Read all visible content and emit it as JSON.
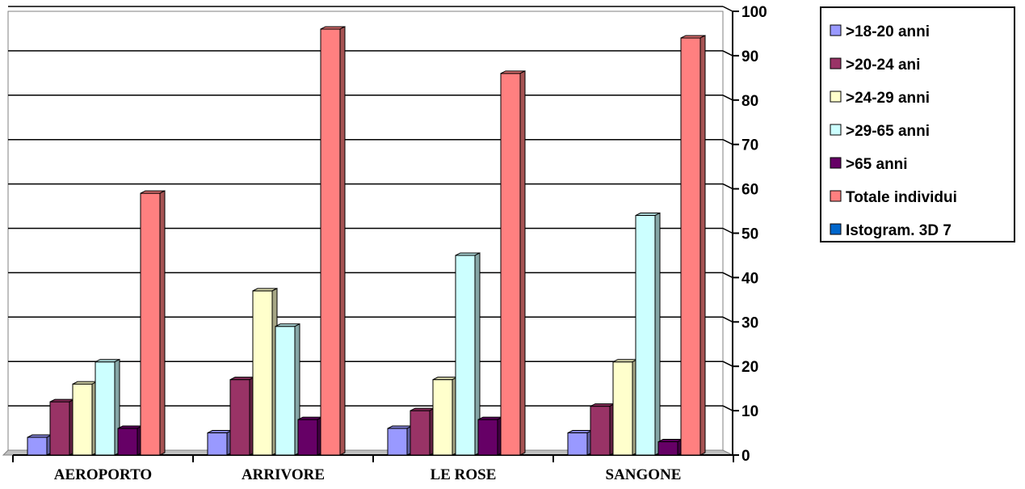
{
  "chart_data": {
    "type": "bar",
    "categories": [
      "AEROPORTO",
      "ARRIVORE",
      "LE ROSE",
      "SANGONE"
    ],
    "series": [
      {
        "name": ">18-20 anni",
        "color": "#9999ff",
        "values": [
          4,
          5,
          6,
          5
        ]
      },
      {
        "name": ">20-24 ani",
        "color": "#993366",
        "values": [
          12,
          17,
          10,
          11
        ]
      },
      {
        "name": ">24-29 anni",
        "color": "#ffffcc",
        "values": [
          16,
          37,
          17,
          21
        ]
      },
      {
        "name": ">29-65 anni",
        "color": "#ccffff",
        "values": [
          21,
          29,
          45,
          54
        ]
      },
      {
        "name": ">65 anni",
        "color": "#660066",
        "values": [
          6,
          8,
          8,
          3
        ]
      },
      {
        "name": "Totale individui",
        "color": "#ff8080",
        "values": [
          59,
          96,
          86,
          94
        ]
      }
    ],
    "legend_extra": [
      {
        "name": "Istogram. 3D 7",
        "color": "#0066cc"
      }
    ],
    "ylim": [
      0,
      100
    ],
    "yticks": [
      0,
      10,
      20,
      30,
      40,
      50,
      60,
      70,
      80,
      90,
      100
    ],
    "y_axis_side": "right",
    "grid": true,
    "legend_position": "top-right",
    "three_d": true
  }
}
